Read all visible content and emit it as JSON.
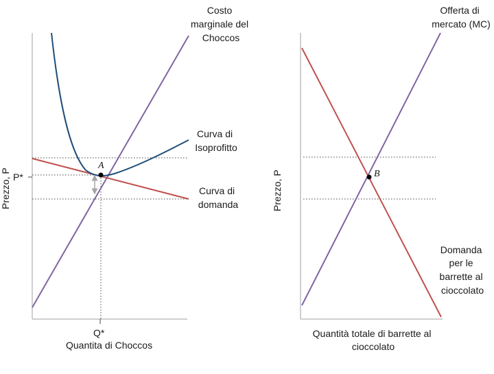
{
  "left_panel": {
    "y_axis_label": "Prezzo, P",
    "price_tick": "P*",
    "quantity_tick": "Q*",
    "x_axis_label": "Quantita di Choccos",
    "point_label": "A",
    "mc_label": [
      "Costo",
      "marginale del",
      "Choccos"
    ],
    "isoprofit_label": [
      "Curva di",
      "Isoprofitto"
    ],
    "demand_label": [
      "Curva di",
      "domanda"
    ]
  },
  "right_panel": {
    "y_axis_label": "Prezzo, P",
    "x_axis_label": [
      "Quantità totale di barrette al",
      "cioccolato"
    ],
    "point_label": "B",
    "supply_label": [
      "Offerta di",
      "mercato (MC)"
    ],
    "demand_label": [
      "Domanda",
      "per le",
      "barrette al",
      "cioccolato"
    ]
  },
  "colors": {
    "marginal_cost": "#8064a2",
    "isoprofit": "#1f4e79",
    "demand": "#c0504d",
    "axis": "#bfbfbf",
    "guide": "#444444",
    "arrow": "#a6a6a6"
  }
}
